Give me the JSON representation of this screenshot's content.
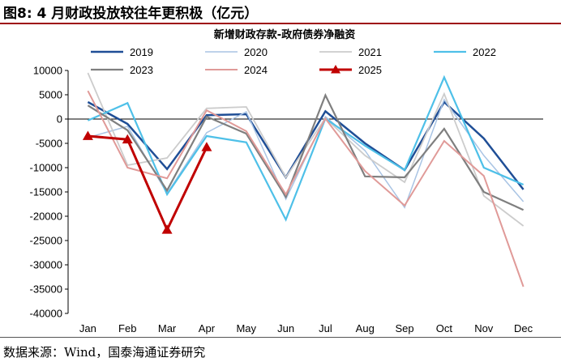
{
  "figure": {
    "title": "图8:  4 月财政投放较往年更积极（亿元）",
    "source": "数据来源：Wind，国泰海通证券研究"
  },
  "chart_data": {
    "type": "line",
    "title": "新增财政存款-政府债券净融资",
    "xlabel": "",
    "ylabel": "",
    "categories": [
      "Jan",
      "Feb",
      "Mar",
      "Apr",
      "May",
      "Jun",
      "Jul",
      "Aug",
      "Sep",
      "Oct",
      "Nov",
      "Dec"
    ],
    "ylim": [
      -40000,
      10000
    ],
    "yticks": [
      10000,
      5000,
      0,
      -5000,
      -10000,
      -15000,
      -20000,
      -25000,
      -30000,
      -35000,
      -40000
    ],
    "ytick_labels": [
      "10000",
      "5000",
      "0",
      "-5000",
      "-10000",
      "-15000",
      "-20000",
      "-25000",
      "-30000",
      "-35000",
      "-40000"
    ],
    "legend_position": "top",
    "series": [
      {
        "name": "2019",
        "color": "#1f4e96",
        "width": 2.5,
        "marker": "none",
        "values": [
          3500,
          -1000,
          -10300,
          800,
          1000,
          -12000,
          1600,
          -5000,
          -10500,
          3500,
          -4000,
          -14500
        ]
      },
      {
        "name": "2020",
        "color": "#a9c4e4",
        "width": 1.5,
        "marker": "none",
        "values": [
          -3800,
          -1500,
          -15300,
          -2800,
          1500,
          -16500,
          500,
          -6500,
          -18200,
          4000,
          -7500,
          -17000
        ]
      },
      {
        "name": "2021",
        "color": "#cccccc",
        "width": 1.8,
        "marker": "none",
        "values": [
          9500,
          -9500,
          -8000,
          2200,
          2500,
          -12000,
          200,
          -7500,
          -13000,
          5200,
          -15800,
          -22000
        ]
      },
      {
        "name": "2022",
        "color": "#4ec0e8",
        "width": 2.2,
        "marker": "none",
        "values": [
          -300,
          3300,
          -15500,
          -3500,
          -4800,
          -20700,
          100,
          -5500,
          -10500,
          8600,
          -10000,
          -13500
        ]
      },
      {
        "name": "2023",
        "color": "#7f7f7f",
        "width": 2.2,
        "marker": "none",
        "values": [
          2800,
          -2300,
          -14700,
          500,
          -3000,
          -16000,
          4900,
          -11800,
          -12000,
          -2000,
          -15000,
          -18700
        ]
      },
      {
        "name": "2024",
        "color": "#e09a98",
        "width": 2.0,
        "marker": "none",
        "values": [
          5800,
          -10000,
          -12200,
          1800,
          -2500,
          -15500,
          100,
          -10700,
          -17800,
          -4500,
          -11700,
          -34500
        ]
      },
      {
        "name": "2025",
        "color": "#c00000",
        "width": 3.0,
        "marker": "triangle",
        "values": [
          -3500,
          -4200,
          -22800,
          -5800,
          null,
          null,
          null,
          null,
          null,
          null,
          null,
          null
        ]
      }
    ]
  }
}
